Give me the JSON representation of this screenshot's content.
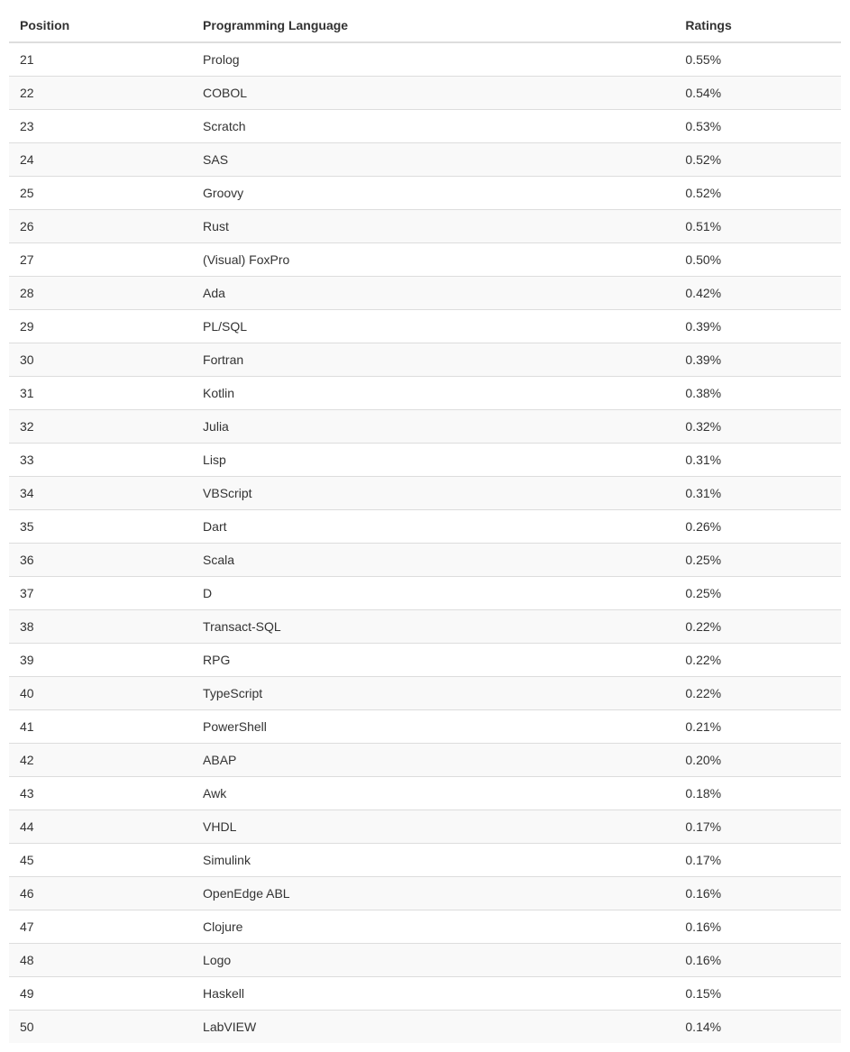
{
  "table": {
    "columns": [
      "Position",
      "Programming Language",
      "Ratings"
    ],
    "rows": [
      {
        "position": "21",
        "language": "Prolog",
        "ratings": "0.55%"
      },
      {
        "position": "22",
        "language": "COBOL",
        "ratings": "0.54%"
      },
      {
        "position": "23",
        "language": "Scratch",
        "ratings": "0.53%"
      },
      {
        "position": "24",
        "language": "SAS",
        "ratings": "0.52%"
      },
      {
        "position": "25",
        "language": "Groovy",
        "ratings": "0.52%"
      },
      {
        "position": "26",
        "language": "Rust",
        "ratings": "0.51%"
      },
      {
        "position": "27",
        "language": "(Visual) FoxPro",
        "ratings": "0.50%"
      },
      {
        "position": "28",
        "language": "Ada",
        "ratings": "0.42%"
      },
      {
        "position": "29",
        "language": "PL/SQL",
        "ratings": "0.39%"
      },
      {
        "position": "30",
        "language": "Fortran",
        "ratings": "0.39%"
      },
      {
        "position": "31",
        "language": "Kotlin",
        "ratings": "0.38%"
      },
      {
        "position": "32",
        "language": "Julia",
        "ratings": "0.32%"
      },
      {
        "position": "33",
        "language": "Lisp",
        "ratings": "0.31%"
      },
      {
        "position": "34",
        "language": "VBScript",
        "ratings": "0.31%"
      },
      {
        "position": "35",
        "language": "Dart",
        "ratings": "0.26%"
      },
      {
        "position": "36",
        "language": "Scala",
        "ratings": "0.25%"
      },
      {
        "position": "37",
        "language": "D",
        "ratings": "0.25%"
      },
      {
        "position": "38",
        "language": "Transact-SQL",
        "ratings": "0.22%"
      },
      {
        "position": "39",
        "language": "RPG",
        "ratings": "0.22%"
      },
      {
        "position": "40",
        "language": "TypeScript",
        "ratings": "0.22%"
      },
      {
        "position": "41",
        "language": "PowerShell",
        "ratings": "0.21%"
      },
      {
        "position": "42",
        "language": "ABAP",
        "ratings": "0.20%"
      },
      {
        "position": "43",
        "language": "Awk",
        "ratings": "0.18%"
      },
      {
        "position": "44",
        "language": "VHDL",
        "ratings": "0.17%"
      },
      {
        "position": "45",
        "language": "Simulink",
        "ratings": "0.17%"
      },
      {
        "position": "46",
        "language": "OpenEdge ABL",
        "ratings": "0.16%"
      },
      {
        "position": "47",
        "language": "Clojure",
        "ratings": "0.16%"
      },
      {
        "position": "48",
        "language": "Logo",
        "ratings": "0.16%"
      },
      {
        "position": "49",
        "language": "Haskell",
        "ratings": "0.15%"
      },
      {
        "position": "50",
        "language": "LabVIEW",
        "ratings": "0.14%"
      }
    ],
    "header_fontsize": 14,
    "cell_fontsize": 14,
    "text_color": "#333333",
    "border_color": "#dddddd",
    "stripe_color_even": "#f9f9f9",
    "stripe_color_odd": "#ffffff",
    "background_color": "#ffffff"
  }
}
